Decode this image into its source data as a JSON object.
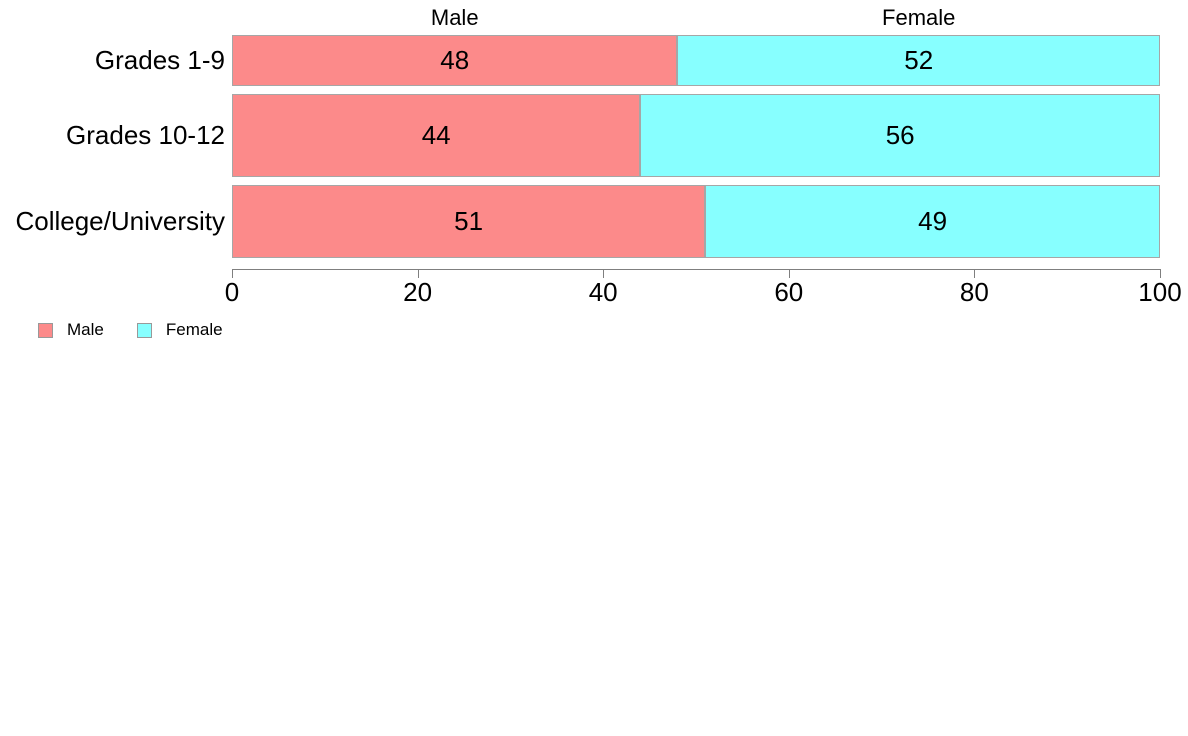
{
  "chart_data": {
    "type": "bar",
    "orientation": "horizontal",
    "stacked": true,
    "categories": [
      "Grades 1-9",
      "Grades 10-12",
      "College/University"
    ],
    "series": [
      {
        "name": "Male",
        "color": "#FC8A8A",
        "values": [
          48,
          44,
          51
        ]
      },
      {
        "name": "Female",
        "color": "#87FFFF",
        "values": [
          52,
          56,
          49
        ]
      }
    ],
    "column_headers": [
      "Male",
      "Female"
    ],
    "x_ticks": [
      0,
      20,
      40,
      60,
      80,
      100
    ],
    "xlim": [
      0,
      100
    ],
    "grid": false,
    "legend_position": "bottom-left",
    "legend_items": [
      {
        "label": "Male",
        "color": "#FC8A8A"
      },
      {
        "label": "Female",
        "color": "#87FFFF"
      }
    ],
    "colors": {
      "bar_border": "#A6A6A6",
      "axis": "#7F7F7F",
      "text": "#000000",
      "background": "#FFFFFF"
    }
  }
}
